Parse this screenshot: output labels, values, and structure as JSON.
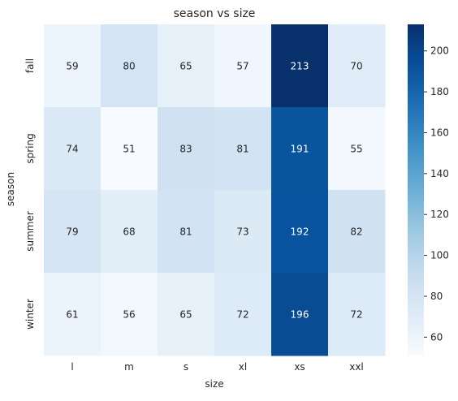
{
  "chart_data": {
    "type": "heatmap",
    "title": "season vs size",
    "xlabel": "size",
    "ylabel": "season",
    "x_categories": [
      "l",
      "m",
      "s",
      "xl",
      "xs",
      "xxl"
    ],
    "y_categories": [
      "fall",
      "spring",
      "summer",
      "winter"
    ],
    "values": [
      [
        59,
        80,
        65,
        57,
        213,
        70
      ],
      [
        74,
        51,
        83,
        81,
        191,
        55
      ],
      [
        79,
        68,
        81,
        73,
        192,
        82
      ],
      [
        61,
        56,
        65,
        72,
        196,
        72
      ]
    ],
    "colormap": "Blues",
    "colorbar": {
      "min": 51,
      "max": 213,
      "ticks": [
        60,
        80,
        100,
        120,
        140,
        160,
        180,
        200
      ]
    },
    "annotations": true,
    "grid": false
  }
}
